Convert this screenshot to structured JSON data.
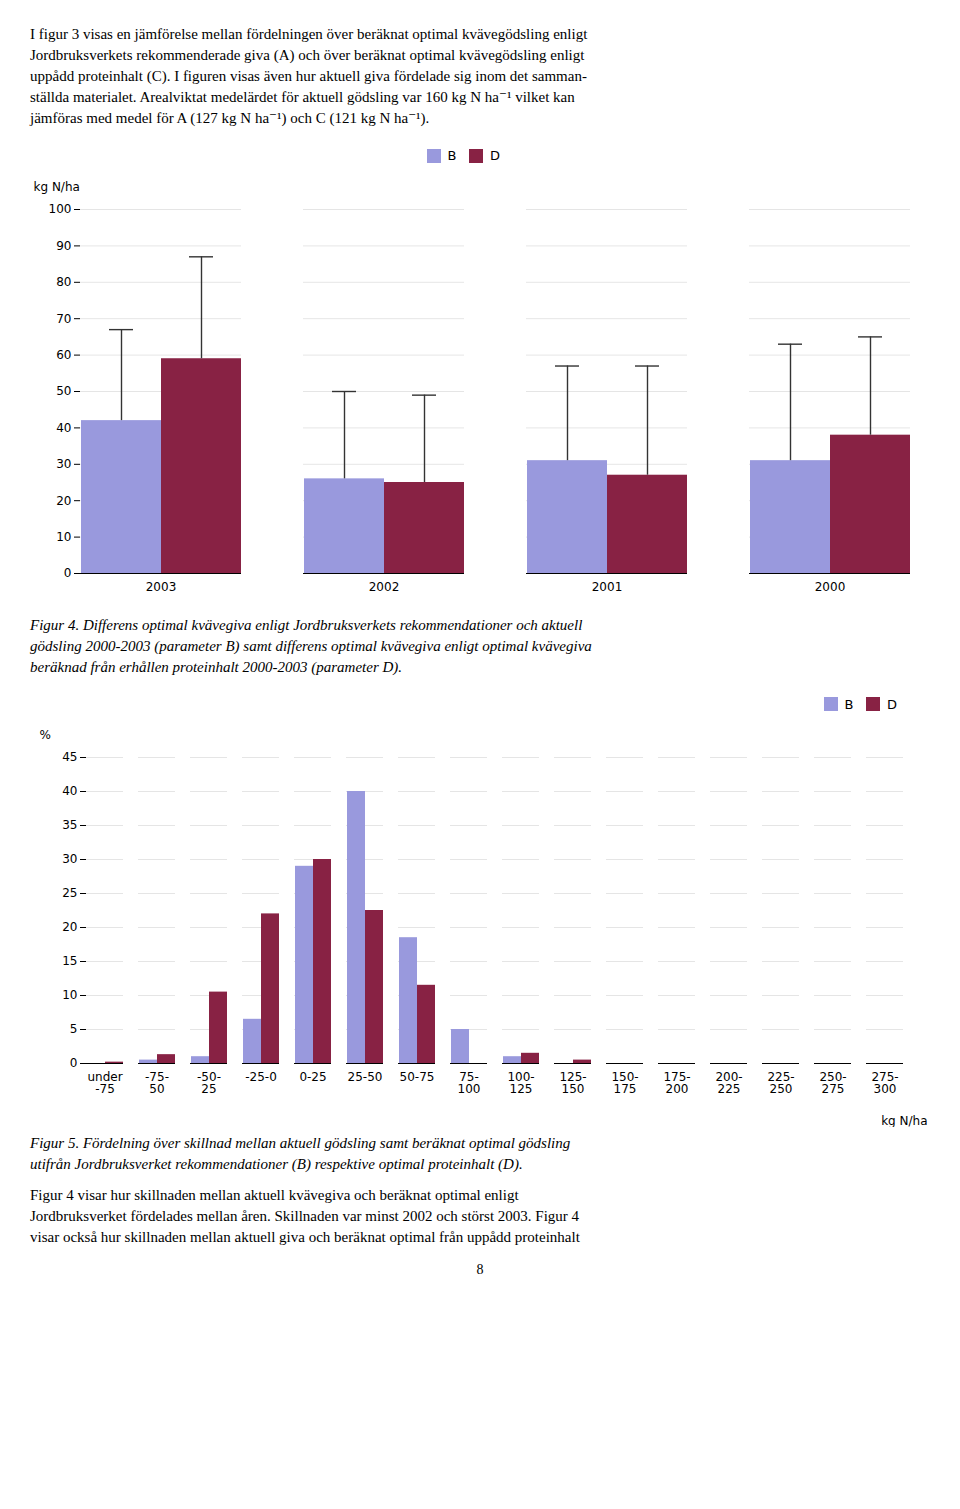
{
  "intro_text": [
    "I figur 3 visas en jämförelse mellan fördelningen över beräknat optimal kvävegödsling enligt",
    "Jordbruksverkets rekommenderade giva (A) och över beräknat optimal kvävegödsling enligt",
    "uppådd proteinhalt (C). I figuren visas även hur aktuell giva fördelade sig inom det samman-",
    "ställda materialet. Arealviktat medelärdet för aktuell gödsling var 160 kg N ha⁻¹ vilket kan",
    "jämföras med medel för A (127 kg N ha⁻¹) och C (121 kg N ha⁻¹)."
  ],
  "chart_data": [
    {
      "type": "bar",
      "ylabel": "kg N/ha",
      "categories": [
        "2003",
        "2002",
        "2001",
        "2000"
      ],
      "series": [
        {
          "name": "B",
          "color": "#9999DD",
          "values": [
            42,
            26,
            31,
            31
          ],
          "error_upper": [
            67,
            50,
            57,
            63
          ]
        },
        {
          "name": "D",
          "color": "#882244",
          "values": [
            59,
            25,
            27,
            38
          ],
          "error_upper": [
            87,
            49,
            57,
            65
          ]
        }
      ],
      "ylim": [
        0,
        100
      ],
      "yticks": [
        0,
        10,
        20,
        30,
        40,
        50,
        60,
        70,
        80,
        90,
        100
      ],
      "grid": true,
      "legend": "upper center",
      "caption": [
        "Figur 4. Differens optimal kvävegiva enligt Jordbruksverkets rekommendationer och aktuell",
        "gödsling 2000-2003 (parameter B) samt differens optimal kvävegiva enligt optimal kvävegiva",
        "beräknad från erhållen proteinhalt 2000-2003 (parameter D)."
      ]
    },
    {
      "type": "bar",
      "ylabel": "%",
      "xlabel": "kg N/ha",
      "categories": [
        "under\n-75",
        "-75-\n50",
        "-50-\n25",
        "-25-0",
        "0-25",
        "25-50",
        "50-75",
        "75-\n100",
        "100-\n125",
        "125-\n150",
        "150-\n175",
        "175-\n200",
        "200-\n225",
        "225-\n250",
        "250-\n275",
        "275-\n300"
      ],
      "series": [
        {
          "name": "B",
          "color": "#9999DD",
          "values": [
            0,
            0.5,
            1.0,
            6.5,
            29.0,
            40.0,
            18.5,
            5.0,
            1.0,
            0,
            0,
            0,
            0,
            0,
            0,
            0
          ]
        },
        {
          "name": "D",
          "color": "#882244",
          "values": [
            0.2,
            1.3,
            10.5,
            22.0,
            30.0,
            22.5,
            11.5,
            0.0,
            1.5,
            0.5,
            0,
            0,
            0,
            0,
            0,
            0
          ]
        }
      ],
      "ylim": [
        0,
        45
      ],
      "yticks": [
        0,
        5,
        10,
        15,
        20,
        25,
        30,
        35,
        40,
        45
      ],
      "grid": true,
      "legend": "upper right",
      "caption": [
        "Figur 5. Fördelning över skillnad mellan aktuell gödsling samt beräknat optimal gödsling",
        "utifrån Jordbruksverket rekommendationer (B) respektive optimal proteinhalt (D)."
      ]
    }
  ],
  "body_text": [
    "Figur 4 visar hur skillnaden mellan aktuell kvävegiva och beräknat optimal enligt",
    "Jordbruksverket fördelades mellan åren. Skillnaden var minst 2002 och störst 2003. Figur 4",
    "visar också hur skillnaden mellan aktuell giva och beräknat optimal från uppådd proteinhalt"
  ],
  "page_number": "8"
}
